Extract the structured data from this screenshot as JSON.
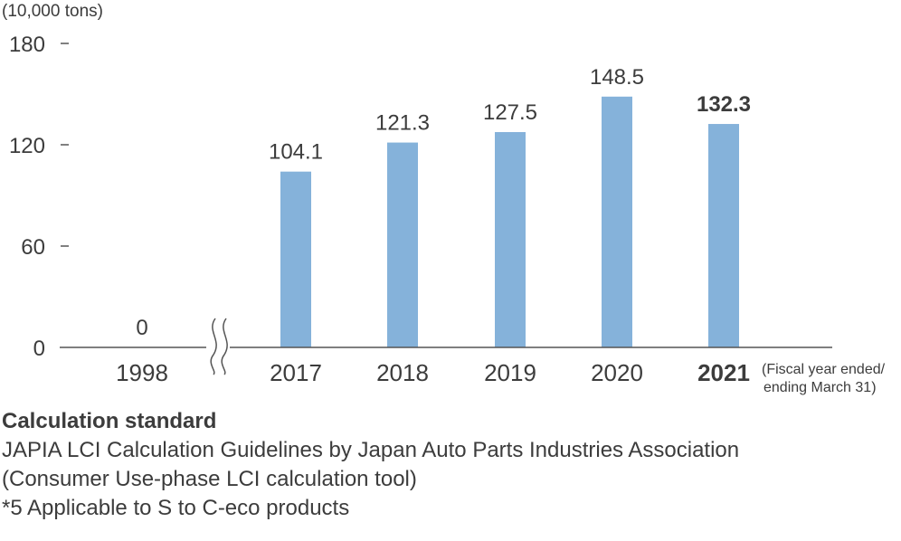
{
  "chart_data": {
    "type": "bar",
    "unit_label": "(10,000 tons)",
    "categories": [
      "1998",
      "2017",
      "2018",
      "2019",
      "2020",
      "2021"
    ],
    "values": [
      0,
      104.1,
      121.3,
      127.5,
      148.5,
      132.3
    ],
    "value_labels": [
      "0",
      "104.1",
      "121.3",
      "127.5",
      "148.5",
      "132.3"
    ],
    "highlight_category": "2021",
    "y_ticks": [
      "0",
      "60",
      "120",
      "180"
    ],
    "ylim": [
      0,
      180
    ],
    "axis_break_after": "1998",
    "x_note_lines": [
      "(Fiscal year ended/",
      "ending March 31)"
    ],
    "bar_color": "#85b2da",
    "grid": false
  },
  "notes": {
    "heading": "Calculation standard",
    "lines": [
      "JAPIA LCI Calculation Guidelines by Japan Auto Parts Industries Association",
      "(Consumer Use-phase LCI calculation tool)",
      "*5 Applicable to S to C-eco products"
    ]
  }
}
